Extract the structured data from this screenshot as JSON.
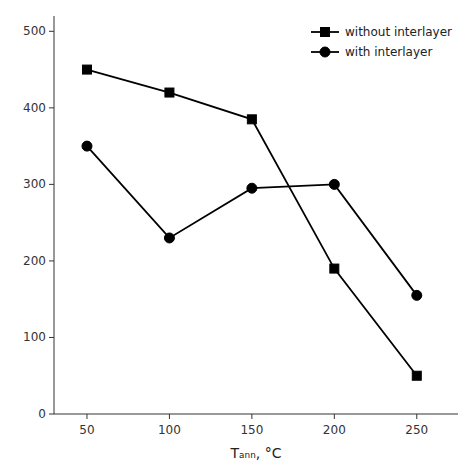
{
  "chart_data": {
    "type": "line",
    "x_label": "Tₐₙₙ, °C",
    "x": [
      50,
      100,
      150,
      200,
      250
    ],
    "series": [
      {
        "name": "without interlayer",
        "color": "black",
        "marker": "square",
        "line_style": "solid",
        "values": [
          450,
          420,
          385,
          190,
          50
        ]
      },
      {
        "name": "with interlayer",
        "color": "black",
        "marker": "circle",
        "line_style": "solid",
        "values": [
          350,
          230,
          295,
          300,
          155
        ]
      }
    ],
    "xlim": [
      30,
      275
    ],
    "ylim": [
      0,
      520
    ],
    "xticks": [
      50,
      100,
      150,
      200,
      250
    ],
    "yticks": [
      0,
      100,
      200,
      300,
      400,
      500
    ],
    "grid": false,
    "legend": "upper right"
  }
}
